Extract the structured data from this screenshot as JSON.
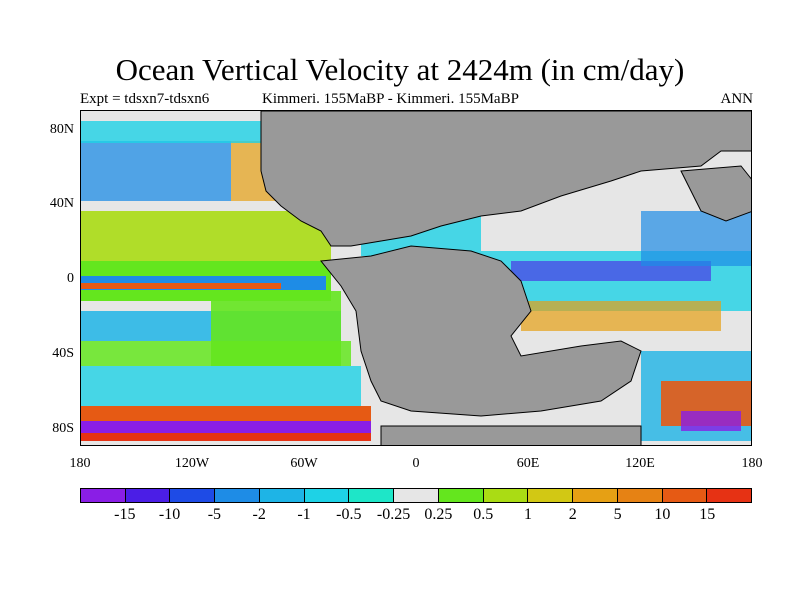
{
  "title": "Ocean Vertical Velocity at 2424m (in cm/day)",
  "subtitle_left": "Expt = tdsxn7-tdsxn6",
  "subtitle_center": "Kimmeri. 155MaBP - Kimmeri. 155MaBP",
  "subtitle_right": "ANN",
  "y_ticks": [
    "80N",
    "40N",
    "0",
    "40S",
    "80S"
  ],
  "x_ticks": [
    "180",
    "120W",
    "60W",
    "0",
    "60E",
    "120E",
    "180"
  ],
  "colorbar": {
    "labels": [
      "-15",
      "-10",
      "-5",
      "-2",
      "-1",
      "-0.5",
      "-0.25",
      "0.25",
      "0.5",
      "1",
      "2",
      "5",
      "10",
      "15"
    ],
    "colors": [
      "#8a1ee6",
      "#4b1ee6",
      "#1e4be6",
      "#1e8ce6",
      "#1eb4e6",
      "#1ed2e6",
      "#1ee6c8",
      "#e6e6e6",
      "#64e61e",
      "#aadc14",
      "#d2c814",
      "#e6a014",
      "#e68214",
      "#e65a14",
      "#e63214"
    ]
  },
  "colors": {
    "land": "#999999",
    "neutral": "#e6e6e6",
    "coast": "#000000"
  },
  "chart_data": {
    "type": "heatmap",
    "title": "Ocean Vertical Velocity at 2424m (in cm/day)",
    "xlabel": "",
    "ylabel": "",
    "xlim": [
      -180,
      180
    ],
    "ylim": [
      -90,
      90
    ],
    "x_tick_labels": [
      "180",
      "120W",
      "60W",
      "0",
      "60E",
      "120E",
      "180"
    ],
    "y_tick_labels": [
      "80N",
      "40N",
      "0",
      "40S",
      "80S"
    ],
    "units": "cm/day",
    "contour_levels": [
      -15,
      -10,
      -5,
      -2,
      -1,
      -0.5,
      -0.25,
      0.25,
      0.5,
      1,
      2,
      5,
      10,
      15
    ]
  }
}
